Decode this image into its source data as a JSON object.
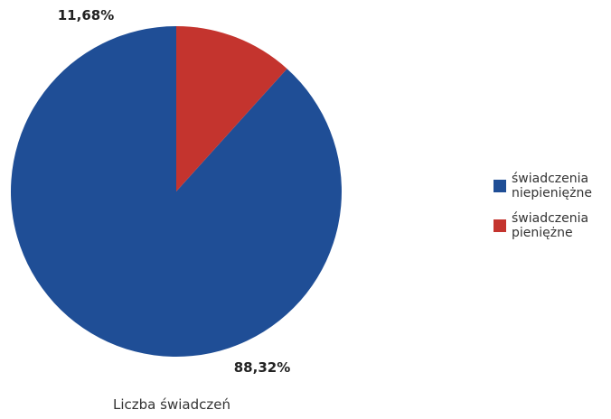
{
  "chart_data": {
    "type": "pie",
    "caption": "Liczba świadczeń",
    "slices": [
      {
        "name_lines": [
          "świadczenia",
          "niepieniężne"
        ],
        "value": 88.32,
        "label": "88,32%",
        "color": "#1f4e96"
      },
      {
        "name_lines": [
          "świadczenia",
          "pieniężne"
        ],
        "value": 11.68,
        "label": "11,68%",
        "color": "#c4342e"
      }
    ],
    "legend_position": "right"
  }
}
